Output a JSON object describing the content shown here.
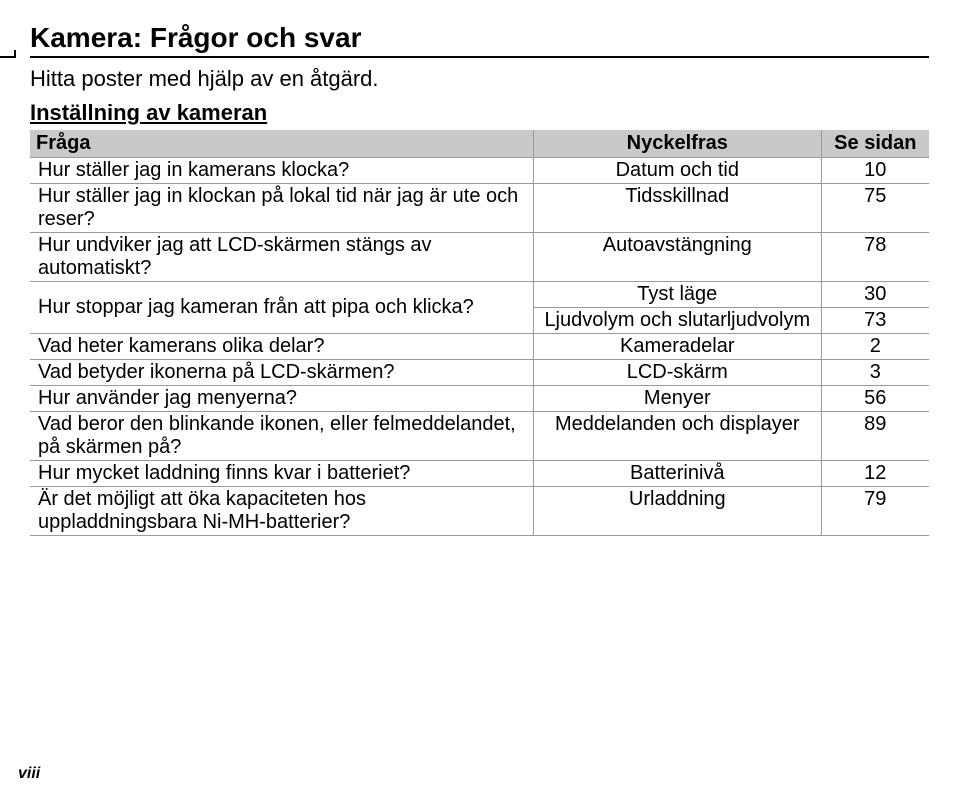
{
  "title": "Kamera: Frågor och svar",
  "subtitle": "Hitta poster med hjälp av en åtgärd.",
  "section": "Inställning av kameran",
  "columns": {
    "q": "Fråga",
    "k": "Nyckelfras",
    "p": "Se sidan"
  },
  "rows": [
    {
      "q": "Hur ställer jag in kamerans klocka?",
      "k": "Datum och tid",
      "p": "10"
    },
    {
      "q": "Hur ställer jag in klockan på lokal tid när jag är ute och reser?",
      "k": "Tidsskillnad",
      "p": "75"
    },
    {
      "q": "Hur undviker jag att LCD-skärmen stängs av automatiskt?",
      "k": "Autoavstängning",
      "p": "78"
    },
    {
      "q": "Hur stoppar jag kameran från att pipa och klicka?",
      "k": "Tyst läge",
      "p": "30",
      "rowspan": 2
    },
    {
      "q": null,
      "k": "Ljudvolym och slutarljudvolym",
      "p": "73"
    },
    {
      "q": "Vad heter kamerans olika delar?",
      "k": "Kameradelar",
      "p": "2"
    },
    {
      "q": "Vad betyder ikonerna på LCD-skärmen?",
      "k": "LCD-skärm",
      "p": "3"
    },
    {
      "q": "Hur använder jag menyerna?",
      "k": "Menyer",
      "p": "56"
    },
    {
      "q": "Vad beror den blinkande ikonen, eller felmeddelandet, på skärmen på?",
      "k": "Meddelanden och displayer",
      "p": "89"
    },
    {
      "q": "Hur mycket laddning finns kvar i batteriet?",
      "k": "Batterinivå",
      "p": "12"
    },
    {
      "q": "Är det möjligt att öka kapaciteten hos uppladdningsbara Ni-MH-batterier?",
      "k": "Urladdning",
      "p": "79"
    }
  ],
  "pageNumber": "viii"
}
